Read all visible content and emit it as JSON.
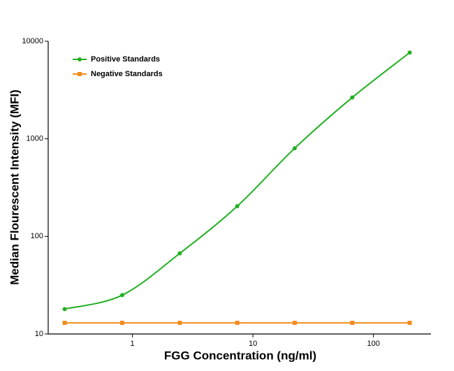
{
  "chart_data": {
    "type": "line",
    "x_label": "FGG Concentration (ng/ml)",
    "y_label": "Median Flourescent Intensity (MFI)",
    "x_scale": "log",
    "y_scale": "log",
    "x": [
      0.274,
      0.823,
      2.47,
      7.41,
      22.2,
      66.7,
      200
    ],
    "series": [
      {
        "name": "Positive Standards",
        "color": "#22b022",
        "marker": "circle",
        "values": [
          18,
          25,
          67,
          204,
          800,
          2650,
          7650
        ]
      },
      {
        "name": "Negative Standards",
        "color": "#f08c1e",
        "marker": "square",
        "values": [
          13,
          13,
          13,
          13,
          13,
          13,
          13
        ]
      }
    ],
    "xlim": [
      0.2,
      300
    ],
    "ylim": [
      10,
      10000
    ],
    "xticks": [
      1,
      10,
      100
    ],
    "yticks": [
      10,
      100,
      1000,
      10000
    ],
    "legend": "top-left"
  }
}
